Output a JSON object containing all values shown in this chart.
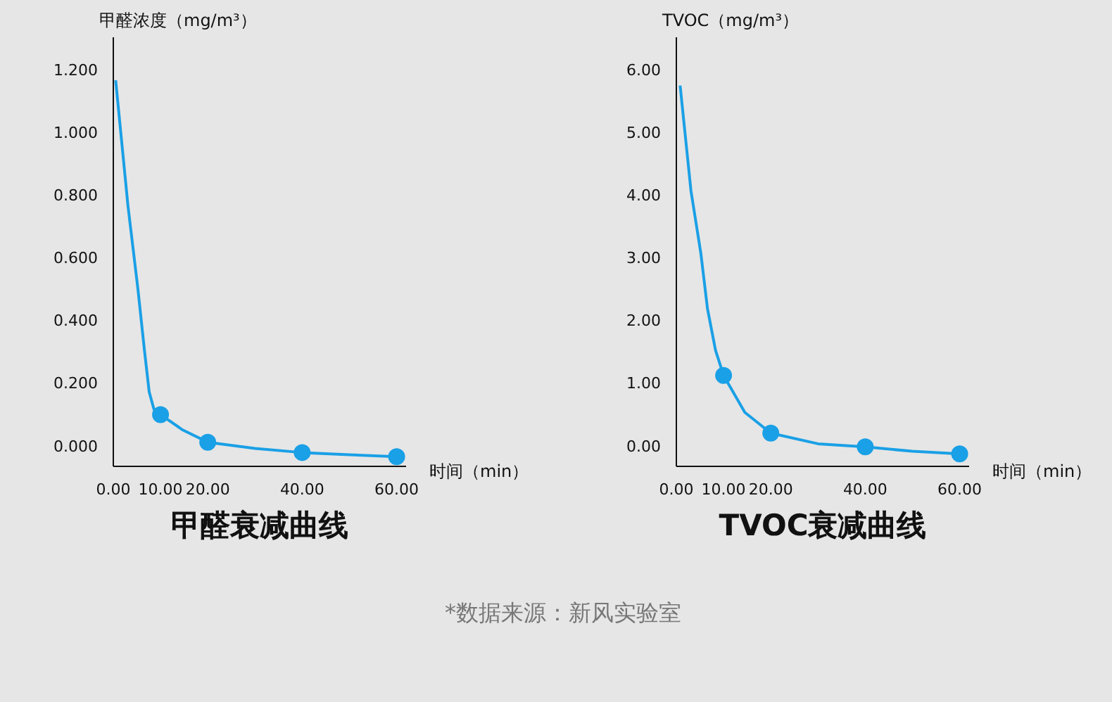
{
  "chart_data": [
    {
      "type": "line",
      "title": "甲醛衰减曲线",
      "ylabel": "甲醛浓度（mg/m³）",
      "xlabel": "时间（min）",
      "series": [
        {
          "marker": "none",
          "color": "#1aa0e6",
          "x": [
            0.5,
            3.1,
            5.2,
            6.6,
            7.6,
            8.6,
            10,
            14.7,
            20,
            30,
            40,
            50,
            60
          ],
          "values": [
            1.163,
            0.763,
            0.499,
            0.301,
            0.169,
            0.114,
            0.097,
            0.048,
            0.009,
            -0.011,
            -0.024,
            -0.031,
            -0.037
          ]
        },
        {
          "type": "scatter",
          "marker": "circle",
          "color": "#1aa0e6",
          "x": [
            10,
            20,
            40,
            60
          ],
          "values": [
            0.097,
            0.009,
            -0.024,
            -0.037
          ]
        }
      ],
      "xlim": [
        0,
        62
      ],
      "xticks": [
        {
          "value": 0,
          "label": "0.00"
        },
        {
          "value": 10,
          "label": "10.00"
        },
        {
          "value": 20,
          "label": "20.00"
        },
        {
          "value": 40,
          "label": "40.00"
        },
        {
          "value": 60,
          "label": "60.00"
        }
      ],
      "ylim": [
        -0.068,
        1.3
      ],
      "yticks": [
        {
          "value": 0,
          "label": "0.000"
        },
        {
          "value": 0.2,
          "label": "0.200"
        },
        {
          "value": 0.4,
          "label": "0.400"
        },
        {
          "value": 0.6,
          "label": "0.600"
        },
        {
          "value": 0.8,
          "label": "0.800"
        },
        {
          "value": 1.0,
          "label": "1.000"
        },
        {
          "value": 1.2,
          "label": "1.200"
        }
      ],
      "annotations": [
        "*数据来源：新风实验室"
      ]
    },
    {
      "type": "line",
      "title": "TVOC衰减曲线",
      "ylabel": "TVOC（mg/m³）",
      "xlabel": "时间（min）",
      "series": [
        {
          "marker": "none",
          "color": "#1aa0e6",
          "x": [
            0.8,
            3.1,
            5.2,
            6.6,
            8.3,
            10,
            14.5,
            20,
            30,
            40,
            50,
            60
          ],
          "values": [
            5.73,
            4.05,
            3.05,
            2.17,
            1.51,
            1.11,
            0.52,
            0.19,
            0.02,
            -0.03,
            -0.1,
            -0.14
          ]
        },
        {
          "type": "scatter",
          "marker": "circle",
          "color": "#1aa0e6",
          "x": [
            10,
            20,
            40,
            60
          ],
          "values": [
            1.11,
            0.19,
            -0.03,
            -0.14
          ]
        }
      ],
      "xlim": [
        0,
        62
      ],
      "xticks": [
        {
          "value": 0,
          "label": "0.00"
        },
        {
          "value": 10,
          "label": "10.00"
        },
        {
          "value": 20,
          "label": "20.00"
        },
        {
          "value": 40,
          "label": "40.00"
        },
        {
          "value": 60,
          "label": "60.00"
        }
      ],
      "ylim": [
        -0.34,
        6.5
      ],
      "yticks": [
        {
          "value": 0,
          "label": "0.00"
        },
        {
          "value": 1,
          "label": "1.00"
        },
        {
          "value": 2,
          "label": "2.00"
        },
        {
          "value": 3,
          "label": "3.00"
        },
        {
          "value": 4,
          "label": "4.00"
        },
        {
          "value": 5,
          "label": "5.00"
        },
        {
          "value": 6,
          "label": "6.00"
        }
      ]
    }
  ]
}
